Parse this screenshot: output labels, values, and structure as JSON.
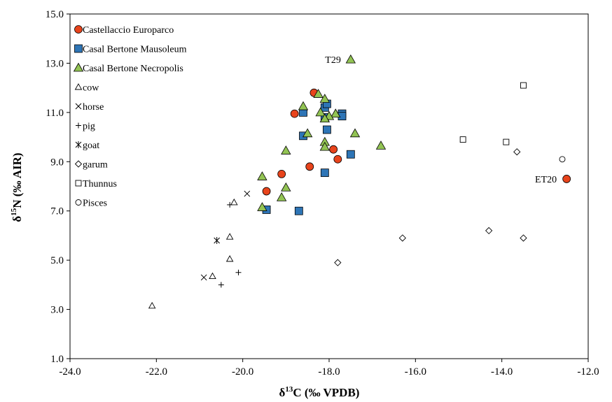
{
  "chart_data": {
    "type": "scatter",
    "title": "",
    "xlabel": {
      "delta": "δ",
      "sup": "13",
      "rest": "C (‰ VPDB)"
    },
    "ylabel": {
      "delta": "δ",
      "sup": "15",
      "rest": "N (‰ AIR)"
    },
    "xlim": [
      -24.0,
      -12.0
    ],
    "ylim": [
      1.0,
      15.0
    ],
    "xticks": [
      "-24.0",
      "-22.0",
      "-20.0",
      "-18.0",
      "-16.0",
      "-14.0",
      "-12.0"
    ],
    "yticks": [
      "1.0",
      "3.0",
      "5.0",
      "7.0",
      "9.0",
      "11.0",
      "13.0",
      "15.0"
    ],
    "grid": false,
    "legend_position": "top-left",
    "series": [
      {
        "name": "Castellaccio Europarco",
        "marker": "circle",
        "color": "#e8441c",
        "points": [
          [
            -18.35,
            11.8
          ],
          [
            -18.8,
            10.95
          ],
          [
            -17.9,
            9.5
          ],
          [
            -17.8,
            9.1
          ],
          [
            -18.45,
            8.8
          ],
          [
            -19.1,
            8.5
          ],
          [
            -19.45,
            7.8
          ],
          [
            -12.5,
            8.3
          ]
        ]
      },
      {
        "name": "Casal Bertone Mausoleum",
        "marker": "square",
        "color": "#2e75b6",
        "points": [
          [
            -18.6,
            11.0
          ],
          [
            -18.1,
            11.2
          ],
          [
            -18.05,
            11.35
          ],
          [
            -17.7,
            10.95
          ],
          [
            -17.7,
            10.85
          ],
          [
            -18.1,
            10.8
          ],
          [
            -18.05,
            10.3
          ],
          [
            -18.6,
            10.05
          ],
          [
            -17.5,
            9.3
          ],
          [
            -18.1,
            8.55
          ],
          [
            -19.45,
            7.05
          ],
          [
            -18.7,
            7.0
          ]
        ]
      },
      {
        "name": "Casal Bertone Necropolis",
        "marker": "triangle",
        "color": "#92c353",
        "points": [
          [
            -17.5,
            13.15
          ],
          [
            -18.25,
            11.75
          ],
          [
            -18.1,
            11.55
          ],
          [
            -18.6,
            11.25
          ],
          [
            -18.2,
            11.0
          ],
          [
            -17.85,
            10.95
          ],
          [
            -18.0,
            10.85
          ],
          [
            -18.1,
            10.75
          ],
          [
            -17.4,
            10.15
          ],
          [
            -18.5,
            10.15
          ],
          [
            -18.1,
            9.8
          ],
          [
            -18.1,
            9.6
          ],
          [
            -16.8,
            9.65
          ],
          [
            -19.0,
            9.45
          ],
          [
            -19.55,
            8.4
          ],
          [
            -19.0,
            7.95
          ],
          [
            -19.1,
            7.55
          ],
          [
            -19.55,
            7.15
          ]
        ]
      },
      {
        "name": "cow",
        "marker": "open-triangle",
        "color": "#000000",
        "points": [
          [
            -20.2,
            7.35
          ],
          [
            -20.3,
            5.95
          ],
          [
            -20.3,
            5.05
          ],
          [
            -20.7,
            4.35
          ],
          [
            -22.1,
            3.15
          ]
        ]
      },
      {
        "name": "horse",
        "marker": "x",
        "color": "#000000",
        "points": [
          [
            -19.9,
            7.7
          ],
          [
            -20.9,
            4.3
          ]
        ]
      },
      {
        "name": "pig",
        "marker": "plus",
        "color": "#000000",
        "points": [
          [
            -20.3,
            7.25
          ],
          [
            -20.1,
            4.5
          ],
          [
            -20.5,
            4.0
          ]
        ]
      },
      {
        "name": "goat",
        "marker": "asterisk",
        "color": "#000000",
        "points": [
          [
            -20.6,
            5.8
          ]
        ]
      },
      {
        "name": "garum",
        "marker": "diamond",
        "color": "#000000",
        "points": [
          [
            -13.65,
            9.4
          ],
          [
            -14.3,
            6.2
          ],
          [
            -13.5,
            5.9
          ],
          [
            -16.3,
            5.9
          ],
          [
            -17.8,
            4.9
          ]
        ]
      },
      {
        "name": "Thunnus",
        "marker": "open-square",
        "color": "#000000",
        "points": [
          [
            -13.5,
            12.1
          ],
          [
            -14.9,
            9.9
          ],
          [
            -13.9,
            9.8
          ]
        ]
      },
      {
        "name": "Pisces",
        "marker": "open-circle",
        "color": "#000000",
        "points": [
          [
            -12.6,
            9.1
          ]
        ]
      }
    ],
    "annotations": [
      {
        "text": "T29",
        "x": -17.5,
        "y": 13.15,
        "anchor": "left-of-point"
      },
      {
        "text": "ET20",
        "x": -12.5,
        "y": 8.3,
        "anchor": "left-of-point"
      }
    ]
  }
}
